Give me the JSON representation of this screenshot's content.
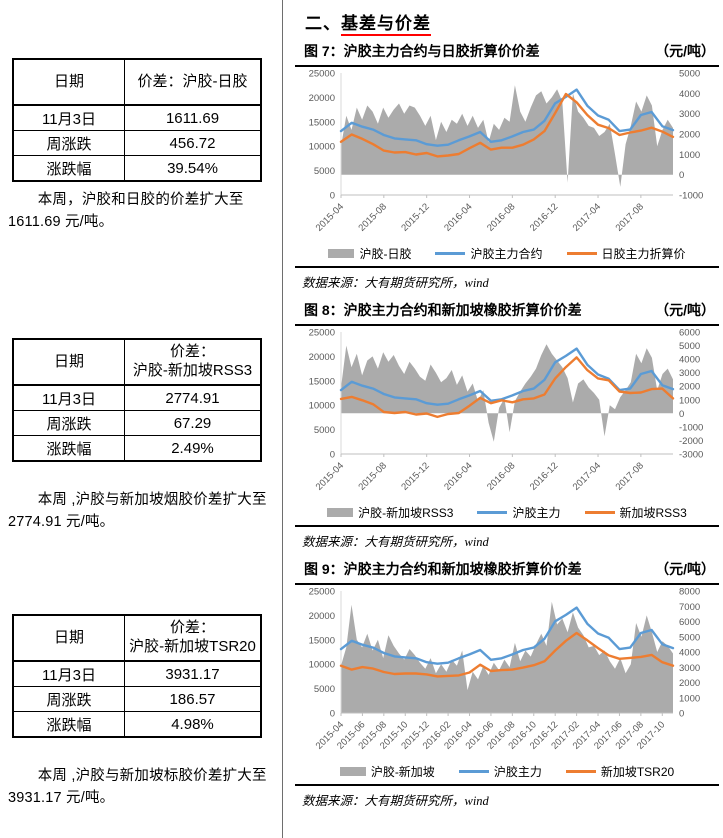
{
  "section": {
    "prefix": "二、",
    "title": "基差与价差",
    "underline_color": "#FF0000"
  },
  "colors": {
    "blue": "#5B9BD5",
    "orange": "#ED7D31",
    "gray": "#ABABAB",
    "axis_line": "#BFBFBF",
    "axis_label": "#595959",
    "rule": "#000000",
    "section_underline": "#FF0000"
  },
  "left_column": {
    "blocks": [
      {
        "table": {
          "headers": [
            "日期",
            "价差：沪胶-日胶"
          ],
          "header2_line2": "",
          "rows": [
            [
              "11月3日",
              "1611.69"
            ],
            [
              "周涨跌",
              "456.72"
            ],
            [
              "涨跌幅",
              "39.54%"
            ]
          ]
        },
        "paragraph": "本周，沪胶和日胶的价差扩大至 1611.69 元/吨。"
      },
      {
        "table": {
          "headers": [
            "日期",
            "价差："
          ],
          "header2_line2": "沪胶-新加坡RSS3",
          "rows": [
            [
              "11月3日",
              "2774.91"
            ],
            [
              "周涨跌",
              "67.29"
            ],
            [
              "涨跌幅",
              "2.49%"
            ]
          ]
        },
        "paragraph": "本周 ,沪胶与新加坡烟胶价差扩大至 2774.91 元/吨。"
      },
      {
        "table": {
          "headers": [
            "日期",
            "价差："
          ],
          "header2_line2": "沪胶-新加坡TSR20",
          "rows": [
            [
              "11月3日",
              "3931.17"
            ],
            [
              "周涨跌",
              "186.57"
            ],
            [
              "涨跌幅",
              "4.98%"
            ]
          ]
        },
        "paragraph": "本周 ,沪胶与新加坡标胶价差扩大至 3931.17 元/吨。"
      }
    ]
  },
  "chart_data": [
    {
      "type": "area",
      "fig_label": "图 7：沪胶主力合约与日胶折算价价差",
      "unit": "（元/吨）",
      "source": "数据来源：大有期货研究所，wind",
      "left_axis": {
        "range": [
          0,
          25000
        ],
        "ticks": [
          0,
          5000,
          10000,
          15000,
          20000,
          25000
        ]
      },
      "right_axis": {
        "range": [
          -1000,
          5000
        ],
        "ticks": [
          -1000,
          0,
          1000,
          2000,
          3000,
          4000,
          5000
        ]
      },
      "x_ticks": {
        "total_months": 31,
        "labels": [
          "2015-04",
          "2015-08",
          "2015-12",
          "2016-04",
          "2016-08",
          "2016-12",
          "2017-04",
          "2017-08"
        ],
        "months": [
          0,
          4,
          8,
          12,
          16,
          20,
          24,
          28
        ]
      },
      "area": {
        "name": "沪胶-日胶",
        "axis": "right",
        "values": [
          1400,
          2900,
          2200,
          3300,
          2700,
          3400,
          3100,
          2500,
          3300,
          2800,
          3200,
          3500,
          3000,
          3400,
          3300,
          2900,
          2400,
          2900,
          1700,
          2600,
          2100,
          2700,
          2500,
          3000,
          2400,
          2900,
          2300,
          2700,
          1600,
          2500,
          2200,
          2800,
          2600,
          4400,
          3100,
          2600,
          3300,
          3900,
          4100,
          3500,
          3800,
          4200,
          3600,
          -400,
          4000,
          3100,
          2800,
          2400,
          2300,
          1900,
          2100,
          2500,
          1000,
          -600,
          1500,
          2400,
          3600,
          3100,
          3900,
          3400,
          1400,
          2200,
          2700,
          2300
        ]
      },
      "series": [
        {
          "name": "沪胶主力合约",
          "axis": "left",
          "color_key": "blue",
          "values": [
            13100,
            14800,
            14000,
            13400,
            12300,
            11600,
            11400,
            11200,
            10400,
            10100,
            10300,
            11200,
            12000,
            12900,
            10900,
            11200,
            12000,
            12900,
            13400,
            15200,
            18800,
            20100,
            21600,
            18300,
            16300,
            15400,
            13100,
            13400,
            16400,
            17000,
            14100,
            13300
          ]
        },
        {
          "name": "日胶主力折算价",
          "axis": "left",
          "color_key": "orange",
          "values": [
            10900,
            12400,
            11500,
            10400,
            9100,
            8700,
            8800,
            8300,
            8600,
            7900,
            8100,
            8400,
            9600,
            10700,
            9300,
            9700,
            9700,
            10300,
            11400,
            13100,
            16800,
            20700,
            19000,
            16400,
            14400,
            13700,
            12300,
            12800,
            13200,
            13800,
            13000,
            11900
          ]
        }
      ]
    },
    {
      "type": "area",
      "fig_label": "图 8：沪胶主力合约和新加坡橡胶折算价价差",
      "unit": "（元/吨）",
      "source": "数据来源：大有期货研究所，wind",
      "left_axis": {
        "range": [
          0,
          25000
        ],
        "ticks": [
          0,
          5000,
          10000,
          15000,
          20000,
          25000
        ]
      },
      "right_axis": {
        "range": [
          -3000,
          6000
        ],
        "ticks": [
          -3000,
          -2000,
          -1000,
          0,
          1000,
          2000,
          3000,
          4000,
          5000,
          6000
        ]
      },
      "x_ticks": {
        "total_months": 31,
        "labels": [
          "2015-04",
          "2015-08",
          "2015-12",
          "2016-04",
          "2016-08",
          "2016-12",
          "2017-04",
          "2017-08"
        ],
        "months": [
          0,
          4,
          8,
          12,
          16,
          20,
          24,
          28
        ]
      },
      "area": {
        "name": "沪胶-新加坡RSS3",
        "axis": "right",
        "values": [
          1900,
          5000,
          3400,
          4400,
          2800,
          3900,
          4200,
          3300,
          4500,
          3800,
          4300,
          3500,
          2900,
          3800,
          3300,
          2700,
          2400,
          3600,
          3000,
          2300,
          2600,
          3200,
          2100,
          2800,
          1600,
          2200,
          900,
          1700,
          -700,
          -2100,
          400,
          1100,
          -1400,
          900,
          1600,
          2200,
          2700,
          3300,
          4300,
          5100,
          4400,
          3900,
          3400,
          2600,
          800,
          2200,
          2500,
          1900,
          1500,
          1000,
          -1700,
          600,
          300,
          1200,
          1700,
          2300,
          4400,
          3700,
          4800,
          4100,
          1700,
          2900,
          3300,
          2500
        ]
      },
      "series": [
        {
          "name": "沪胶主力",
          "axis": "left",
          "color_key": "blue",
          "values": [
            13100,
            14800,
            14000,
            13400,
            12300,
            11600,
            11400,
            11200,
            10400,
            10100,
            10300,
            11200,
            12000,
            12900,
            10900,
            11200,
            12000,
            12900,
            13400,
            15200,
            18800,
            20100,
            21600,
            18300,
            16300,
            15400,
            13100,
            13400,
            16400,
            17000,
            14100,
            13300
          ]
        },
        {
          "name": "新加坡RSS3",
          "axis": "left",
          "color_key": "orange",
          "values": [
            11300,
            11700,
            11000,
            10200,
            8600,
            8400,
            8600,
            8100,
            8300,
            7600,
            8200,
            8400,
            9900,
            11500,
            10400,
            11000,
            10600,
            11200,
            11400,
            12200,
            15500,
            17800,
            19800,
            17200,
            15500,
            15100,
            12800,
            12500,
            12600,
            13300,
            13400,
            11400
          ]
        }
      ]
    },
    {
      "type": "area",
      "fig_label": "图 9：沪胶主力合约和新加坡橡胶折算价价差",
      "unit": "（元/吨）",
      "source": "数据来源：大有期货研究所，wind",
      "left_axis": {
        "range": [
          0,
          25000
        ],
        "ticks": [
          0,
          5000,
          10000,
          15000,
          20000,
          25000
        ]
      },
      "right_axis": {
        "range": [
          0,
          8000
        ],
        "ticks": [
          0,
          1000,
          2000,
          3000,
          4000,
          5000,
          6000,
          7000,
          8000
        ]
      },
      "x_ticks": {
        "total_months": 31,
        "labels": [
          "2015-04",
          "2015-06",
          "2015-08",
          "2015-10",
          "2015-12",
          "2016-02",
          "2016-04",
          "2016-06",
          "2016-08",
          "2016-10",
          "2016-12",
          "2017-02",
          "2017-04",
          "2017-06",
          "2017-08",
          "2017-10"
        ],
        "months": [
          0,
          2,
          4,
          6,
          8,
          10,
          12,
          14,
          16,
          18,
          20,
          22,
          24,
          26,
          28,
          30
        ]
      },
      "area": {
        "name": "沪胶-新加坡",
        "axis": "right",
        "values": [
          3100,
          4300,
          7100,
          4800,
          4300,
          5200,
          4100,
          4800,
          3600,
          5100,
          4400,
          3900,
          3500,
          4200,
          3800,
          3300,
          2900,
          3600,
          2600,
          3200,
          2700,
          3500,
          3100,
          4100,
          1500,
          2700,
          2200,
          3100,
          2500,
          3300,
          2800,
          3500,
          3000,
          4600,
          3400,
          4100,
          3700,
          4500,
          5200,
          4400,
          7300,
          5800,
          6200,
          5300,
          6600,
          5600,
          5100,
          4300,
          4400,
          3800,
          4100,
          3400,
          2900,
          3600,
          2600,
          3200,
          5900,
          5000,
          6400,
          5300,
          4000,
          4700,
          4400,
          3900
        ]
      },
      "series": [
        {
          "name": "沪胶主力",
          "axis": "left",
          "color_key": "blue",
          "values": [
            13100,
            14800,
            14000,
            13400,
            12300,
            11600,
            11400,
            11200,
            10400,
            10100,
            10300,
            11200,
            12000,
            12900,
            10900,
            11200,
            12000,
            12900,
            13400,
            15200,
            18800,
            20100,
            21600,
            18300,
            16300,
            15400,
            13100,
            13400,
            16400,
            17000,
            14100,
            13300
          ]
        },
        {
          "name": "新加坡TSR20",
          "axis": "left",
          "color_key": "orange",
          "values": [
            9700,
            8900,
            9400,
            9100,
            8400,
            8000,
            8100,
            8100,
            7900,
            7500,
            7600,
            7700,
            8300,
            9900,
            8600,
            8800,
            8900,
            9300,
            9800,
            10600,
            12800,
            14800,
            16400,
            14900,
            13300,
            11800,
            11100,
            11300,
            11500,
            11900,
            10400,
            9700
          ]
        }
      ]
    }
  ]
}
